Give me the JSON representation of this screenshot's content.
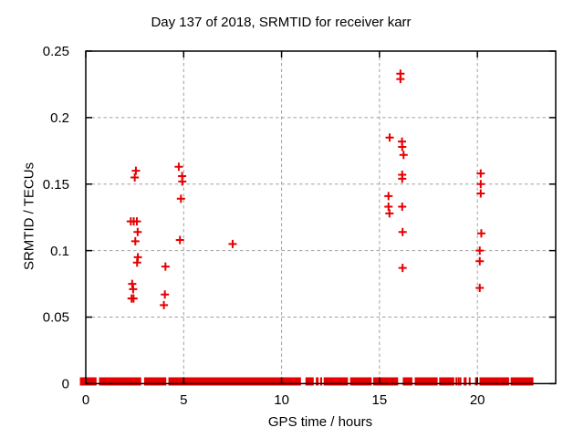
{
  "chart_data": {
    "type": "scatter",
    "title": "Day 137 of 2018, SRMTID for receiver karr",
    "xlabel": "GPS time / hours",
    "ylabel": "SRMTID / TECUs",
    "xlim": [
      0,
      24
    ],
    "ylim": [
      0,
      0.25
    ],
    "xticks": [
      {
        "v": 0,
        "label": "0"
      },
      {
        "v": 5,
        "label": "5"
      },
      {
        "v": 10,
        "label": "10"
      },
      {
        "v": 15,
        "label": "15"
      },
      {
        "v": 20,
        "label": "20"
      }
    ],
    "yticks": [
      {
        "v": 0,
        "label": "0"
      },
      {
        "v": 0.05,
        "label": "0.05"
      },
      {
        "v": 0.1,
        "label": "0.1"
      },
      {
        "v": 0.15,
        "label": "0.15"
      },
      {
        "v": 0.2,
        "label": "0.2"
      },
      {
        "v": 0.25,
        "label": "0.25"
      }
    ],
    "grid": true,
    "legend": "none",
    "marker": "plus",
    "points": [
      [
        2.56,
        0.16
      ],
      [
        2.5,
        0.155
      ],
      [
        2.3,
        0.122
      ],
      [
        2.45,
        0.122
      ],
      [
        2.61,
        0.122
      ],
      [
        2.65,
        0.114
      ],
      [
        2.53,
        0.107
      ],
      [
        2.66,
        0.095
      ],
      [
        2.62,
        0.091
      ],
      [
        2.37,
        0.075
      ],
      [
        2.42,
        0.071
      ],
      [
        2.34,
        0.064
      ],
      [
        2.44,
        0.064
      ],
      [
        4.07,
        0.088
      ],
      [
        4.04,
        0.067
      ],
      [
        3.99,
        0.059
      ],
      [
        4.75,
        0.163
      ],
      [
        4.92,
        0.156
      ],
      [
        4.93,
        0.152
      ],
      [
        4.86,
        0.139
      ],
      [
        4.81,
        0.108
      ],
      [
        7.5,
        0.105
      ],
      [
        16.07,
        0.233
      ],
      [
        16.07,
        0.229
      ],
      [
        15.52,
        0.185
      ],
      [
        16.15,
        0.182
      ],
      [
        16.16,
        0.178
      ],
      [
        16.23,
        0.172
      ],
      [
        16.16,
        0.157
      ],
      [
        16.16,
        0.154
      ],
      [
        15.46,
        0.141
      ],
      [
        15.46,
        0.133
      ],
      [
        16.16,
        0.133
      ],
      [
        15.51,
        0.128
      ],
      [
        16.18,
        0.114
      ],
      [
        16.18,
        0.087
      ],
      [
        20.17,
        0.158
      ],
      [
        20.17,
        0.15
      ],
      [
        20.17,
        0.143
      ],
      [
        20.2,
        0.113
      ],
      [
        20.12,
        0.1
      ],
      [
        20.12,
        0.092
      ],
      [
        20.12,
        0.072
      ]
    ],
    "zero_band_segments_hours": [
      [
        -0.3,
        0.55
      ],
      [
        0.68,
        2.83
      ],
      [
        2.98,
        4.11
      ],
      [
        4.22,
        10.99
      ],
      [
        11.22,
        11.64
      ],
      [
        11.75,
        11.89
      ],
      [
        11.97,
        12.07
      ],
      [
        12.15,
        13.39
      ],
      [
        13.5,
        14.6
      ],
      [
        14.68,
        15.95
      ],
      [
        16.19,
        16.68
      ],
      [
        16.8,
        17.97
      ],
      [
        18.05,
        18.82
      ],
      [
        18.88,
        18.94
      ],
      [
        18.99,
        19.05
      ],
      [
        19.09,
        19.14
      ],
      [
        19.3,
        19.45
      ],
      [
        19.56,
        19.65
      ],
      [
        19.88,
        20.02
      ],
      [
        20.11,
        21.62
      ],
      [
        21.7,
        22.86
      ]
    ]
  },
  "colors": {
    "marker": "#e60000",
    "grid": "#a0a0a0",
    "frame": "#000000",
    "background": "#ffffff"
  }
}
